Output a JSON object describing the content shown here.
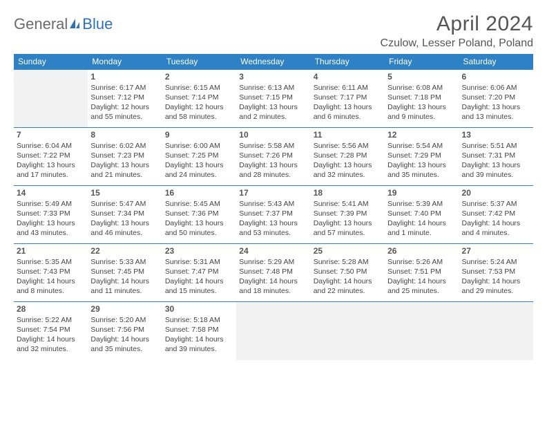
{
  "brand": {
    "part1": "General",
    "part2": "Blue",
    "text_color": "#6b6b6b",
    "accent_color": "#2d72b8"
  },
  "title": {
    "month": "April 2024",
    "location": "Czulow, Lesser Poland, Poland"
  },
  "dayHeaders": [
    "Sunday",
    "Monday",
    "Tuesday",
    "Wednesday",
    "Thursday",
    "Friday",
    "Saturday"
  ],
  "style": {
    "header_bg": "#2d81c4",
    "header_text": "#ffffff",
    "cell_border": "#2d81c4",
    "pad_bg": "#f2f2f2",
    "body_text": "#444444",
    "daynum_fontsize": 12,
    "detail_fontsize": 10.5
  },
  "weeks": [
    [
      {
        "pad": true
      },
      {
        "n": "1",
        "sr": "Sunrise: 6:17 AM",
        "ss": "Sunset: 7:12 PM",
        "d1": "Daylight: 12 hours",
        "d2": "and 55 minutes."
      },
      {
        "n": "2",
        "sr": "Sunrise: 6:15 AM",
        "ss": "Sunset: 7:14 PM",
        "d1": "Daylight: 12 hours",
        "d2": "and 58 minutes."
      },
      {
        "n": "3",
        "sr": "Sunrise: 6:13 AM",
        "ss": "Sunset: 7:15 PM",
        "d1": "Daylight: 13 hours",
        "d2": "and 2 minutes."
      },
      {
        "n": "4",
        "sr": "Sunrise: 6:11 AM",
        "ss": "Sunset: 7:17 PM",
        "d1": "Daylight: 13 hours",
        "d2": "and 6 minutes."
      },
      {
        "n": "5",
        "sr": "Sunrise: 6:08 AM",
        "ss": "Sunset: 7:18 PM",
        "d1": "Daylight: 13 hours",
        "d2": "and 9 minutes."
      },
      {
        "n": "6",
        "sr": "Sunrise: 6:06 AM",
        "ss": "Sunset: 7:20 PM",
        "d1": "Daylight: 13 hours",
        "d2": "and 13 minutes."
      }
    ],
    [
      {
        "n": "7",
        "sr": "Sunrise: 6:04 AM",
        "ss": "Sunset: 7:22 PM",
        "d1": "Daylight: 13 hours",
        "d2": "and 17 minutes."
      },
      {
        "n": "8",
        "sr": "Sunrise: 6:02 AM",
        "ss": "Sunset: 7:23 PM",
        "d1": "Daylight: 13 hours",
        "d2": "and 21 minutes."
      },
      {
        "n": "9",
        "sr": "Sunrise: 6:00 AM",
        "ss": "Sunset: 7:25 PM",
        "d1": "Daylight: 13 hours",
        "d2": "and 24 minutes."
      },
      {
        "n": "10",
        "sr": "Sunrise: 5:58 AM",
        "ss": "Sunset: 7:26 PM",
        "d1": "Daylight: 13 hours",
        "d2": "and 28 minutes."
      },
      {
        "n": "11",
        "sr": "Sunrise: 5:56 AM",
        "ss": "Sunset: 7:28 PM",
        "d1": "Daylight: 13 hours",
        "d2": "and 32 minutes."
      },
      {
        "n": "12",
        "sr": "Sunrise: 5:54 AM",
        "ss": "Sunset: 7:29 PM",
        "d1": "Daylight: 13 hours",
        "d2": "and 35 minutes."
      },
      {
        "n": "13",
        "sr": "Sunrise: 5:51 AM",
        "ss": "Sunset: 7:31 PM",
        "d1": "Daylight: 13 hours",
        "d2": "and 39 minutes."
      }
    ],
    [
      {
        "n": "14",
        "sr": "Sunrise: 5:49 AM",
        "ss": "Sunset: 7:33 PM",
        "d1": "Daylight: 13 hours",
        "d2": "and 43 minutes."
      },
      {
        "n": "15",
        "sr": "Sunrise: 5:47 AM",
        "ss": "Sunset: 7:34 PM",
        "d1": "Daylight: 13 hours",
        "d2": "and 46 minutes."
      },
      {
        "n": "16",
        "sr": "Sunrise: 5:45 AM",
        "ss": "Sunset: 7:36 PM",
        "d1": "Daylight: 13 hours",
        "d2": "and 50 minutes."
      },
      {
        "n": "17",
        "sr": "Sunrise: 5:43 AM",
        "ss": "Sunset: 7:37 PM",
        "d1": "Daylight: 13 hours",
        "d2": "and 53 minutes."
      },
      {
        "n": "18",
        "sr": "Sunrise: 5:41 AM",
        "ss": "Sunset: 7:39 PM",
        "d1": "Daylight: 13 hours",
        "d2": "and 57 minutes."
      },
      {
        "n": "19",
        "sr": "Sunrise: 5:39 AM",
        "ss": "Sunset: 7:40 PM",
        "d1": "Daylight: 14 hours",
        "d2": "and 1 minute."
      },
      {
        "n": "20",
        "sr": "Sunrise: 5:37 AM",
        "ss": "Sunset: 7:42 PM",
        "d1": "Daylight: 14 hours",
        "d2": "and 4 minutes."
      }
    ],
    [
      {
        "n": "21",
        "sr": "Sunrise: 5:35 AM",
        "ss": "Sunset: 7:43 PM",
        "d1": "Daylight: 14 hours",
        "d2": "and 8 minutes."
      },
      {
        "n": "22",
        "sr": "Sunrise: 5:33 AM",
        "ss": "Sunset: 7:45 PM",
        "d1": "Daylight: 14 hours",
        "d2": "and 11 minutes."
      },
      {
        "n": "23",
        "sr": "Sunrise: 5:31 AM",
        "ss": "Sunset: 7:47 PM",
        "d1": "Daylight: 14 hours",
        "d2": "and 15 minutes."
      },
      {
        "n": "24",
        "sr": "Sunrise: 5:29 AM",
        "ss": "Sunset: 7:48 PM",
        "d1": "Daylight: 14 hours",
        "d2": "and 18 minutes."
      },
      {
        "n": "25",
        "sr": "Sunrise: 5:28 AM",
        "ss": "Sunset: 7:50 PM",
        "d1": "Daylight: 14 hours",
        "d2": "and 22 minutes."
      },
      {
        "n": "26",
        "sr": "Sunrise: 5:26 AM",
        "ss": "Sunset: 7:51 PM",
        "d1": "Daylight: 14 hours",
        "d2": "and 25 minutes."
      },
      {
        "n": "27",
        "sr": "Sunrise: 5:24 AM",
        "ss": "Sunset: 7:53 PM",
        "d1": "Daylight: 14 hours",
        "d2": "and 29 minutes."
      }
    ],
    [
      {
        "n": "28",
        "sr": "Sunrise: 5:22 AM",
        "ss": "Sunset: 7:54 PM",
        "d1": "Daylight: 14 hours",
        "d2": "and 32 minutes."
      },
      {
        "n": "29",
        "sr": "Sunrise: 5:20 AM",
        "ss": "Sunset: 7:56 PM",
        "d1": "Daylight: 14 hours",
        "d2": "and 35 minutes."
      },
      {
        "n": "30",
        "sr": "Sunrise: 5:18 AM",
        "ss": "Sunset: 7:58 PM",
        "d1": "Daylight: 14 hours",
        "d2": "and 39 minutes."
      },
      {
        "pad": true
      },
      {
        "pad": true
      },
      {
        "pad": true
      },
      {
        "pad": true
      }
    ]
  ]
}
